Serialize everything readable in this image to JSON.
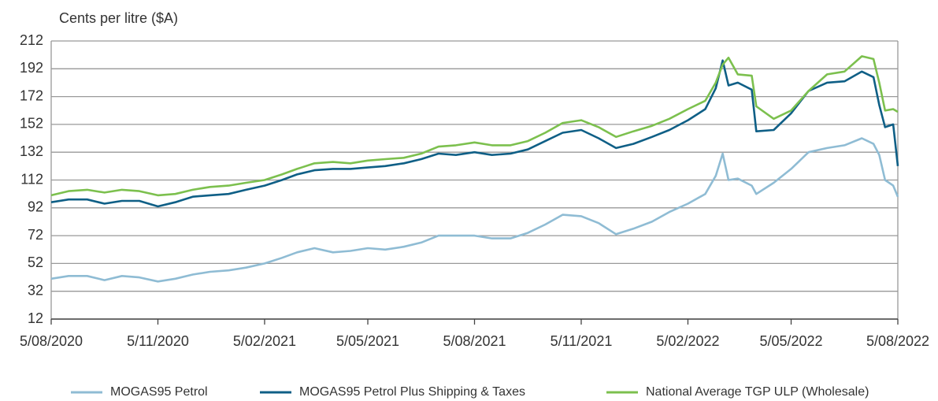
{
  "chart_data": {
    "type": "line",
    "y_label": "Cents per litre ($A)",
    "x": [
      "5/08/2020",
      "20/08/2020",
      "5/09/2020",
      "20/09/2020",
      "5/10/2020",
      "20/10/2020",
      "5/11/2020",
      "20/11/2020",
      "5/12/2020",
      "20/12/2020",
      "5/01/2021",
      "20/01/2021",
      "5/02/2021",
      "20/02/2021",
      "5/03/2021",
      "20/03/2021",
      "5/04/2021",
      "20/04/2021",
      "5/05/2021",
      "20/05/2021",
      "5/06/2021",
      "20/06/2021",
      "5/07/2021",
      "20/07/2021",
      "5/08/2021",
      "20/08/2021",
      "5/09/2021",
      "20/09/2021",
      "5/10/2021",
      "20/10/2021",
      "5/11/2021",
      "20/11/2021",
      "5/12/2021",
      "20/12/2021",
      "5/01/2022",
      "20/01/2022",
      "5/02/2022",
      "20/02/2022",
      "1/03/2022",
      "7/03/2022",
      "12/03/2022",
      "20/03/2022",
      "1/04/2022",
      "5/04/2022",
      "20/04/2022",
      "5/05/2022",
      "20/05/2022",
      "5/06/2022",
      "20/06/2022",
      "5/07/2022",
      "15/07/2022",
      "20/07/2022",
      "25/07/2022",
      "1/08/2022",
      "5/08/2022"
    ],
    "series": [
      {
        "name": "MOGAS95 Petrol",
        "color": "#8fbcd4",
        "values": [
          41,
          43,
          43,
          40,
          43,
          42,
          39,
          41,
          44,
          46,
          47,
          49,
          52,
          56,
          60,
          63,
          60,
          61,
          63,
          62,
          64,
          67,
          72,
          72,
          72,
          70,
          70,
          74,
          80,
          87,
          86,
          81,
          73,
          77,
          82,
          89,
          95,
          102,
          115,
          131,
          112,
          113,
          108,
          102,
          110,
          120,
          132,
          135,
          137,
          142,
          138,
          130,
          112,
          108,
          100
        ]
      },
      {
        "name": "MOGAS95 Petrol Plus Shipping & Taxes",
        "color": "#0f5f86",
        "values": [
          96,
          98,
          98,
          95,
          97,
          97,
          93,
          96,
          100,
          101,
          102,
          105,
          108,
          112,
          116,
          119,
          120,
          120,
          121,
          122,
          124,
          127,
          131,
          130,
          132,
          130,
          131,
          134,
          140,
          146,
          148,
          142,
          135,
          138,
          143,
          148,
          155,
          163,
          178,
          198,
          180,
          182,
          177,
          147,
          148,
          160,
          176,
          182,
          183,
          190,
          186,
          166,
          150,
          152,
          122
        ]
      },
      {
        "name": "National Average TGP ULP (Wholesale)",
        "color": "#7cc04e",
        "values": [
          101,
          104,
          105,
          103,
          105,
          104,
          101,
          102,
          105,
          107,
          108,
          110,
          112,
          116,
          120,
          124,
          125,
          124,
          126,
          127,
          128,
          131,
          136,
          137,
          139,
          137,
          137,
          140,
          146,
          153,
          155,
          150,
          143,
          147,
          151,
          156,
          163,
          169,
          182,
          195,
          200,
          188,
          187,
          165,
          156,
          162,
          176,
          188,
          190,
          201,
          199,
          182,
          162,
          163,
          161
        ]
      }
    ],
    "xticks": [
      "5/08/2020",
      "5/11/2020",
      "5/02/2021",
      "5/05/2021",
      "5/08/2021",
      "5/11/2021",
      "5/02/2022",
      "5/05/2022",
      "5/08/2022"
    ],
    "ylim": [
      12,
      212
    ],
    "yticks": [
      12,
      32,
      52,
      72,
      92,
      112,
      132,
      152,
      172,
      192,
      212
    ],
    "grid": true
  }
}
